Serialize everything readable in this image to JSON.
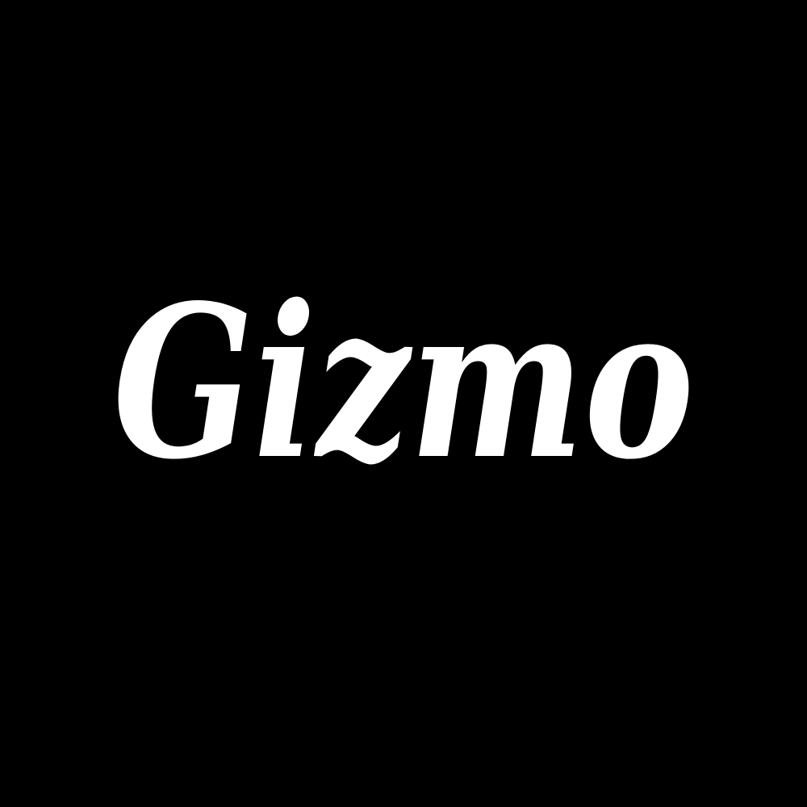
{
  "background_color": "#000000",
  "logo": {
    "wordmark": "Gizmo",
    "color": "#ffffff"
  }
}
